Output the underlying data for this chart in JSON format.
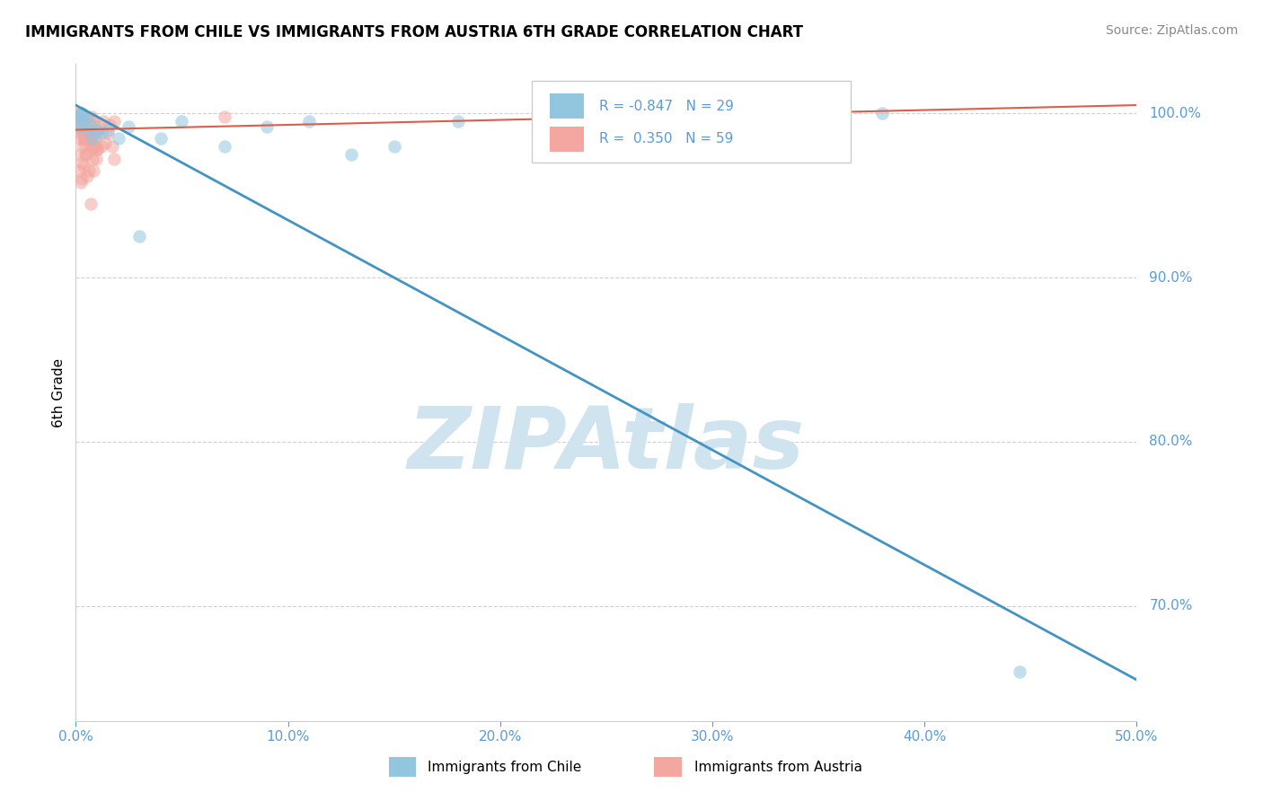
{
  "title": "IMMIGRANTS FROM CHILE VS IMMIGRANTS FROM AUSTRIA 6TH GRADE CORRELATION CHART",
  "source": "Source: ZipAtlas.com",
  "ylabel": "6th Grade",
  "xlim": [
    0.0,
    50.0
  ],
  "ylim": [
    63.0,
    103.0
  ],
  "yticks_right": [
    70.0,
    80.0,
    90.0,
    100.0
  ],
  "xticks": [
    0.0,
    10.0,
    20.0,
    30.0,
    40.0,
    50.0
  ],
  "legend_label1": "Immigrants from Chile",
  "legend_label2": "Immigrants from Austria",
  "R_chile": -0.847,
  "N_chile": 29,
  "R_austria": 0.35,
  "N_austria": 59,
  "color_chile": "#92c5de",
  "color_austria": "#f4a6a0",
  "trend_color_chile": "#4393c3",
  "trend_color_austria": "#d6604d",
  "watermark": "ZIPAtlas",
  "watermark_color": "#d0e4f0",
  "tick_color": "#5b9bd5",
  "grid_color": "#d0d0d0",
  "chile_x": [
    0.1,
    0.2,
    0.3,
    0.15,
    0.25,
    0.35,
    0.5,
    0.6,
    0.7,
    0.8,
    1.0,
    1.2,
    1.5,
    2.0,
    2.5,
    3.0,
    4.0,
    5.0,
    7.0,
    9.0,
    11.0,
    13.0,
    15.0,
    18.0,
    22.0,
    28.0,
    33.0,
    38.0,
    44.5
  ],
  "chile_y": [
    99.5,
    99.8,
    100.0,
    99.2,
    100.0,
    99.5,
    99.8,
    99.0,
    99.3,
    98.5,
    99.0,
    98.8,
    99.0,
    98.5,
    99.2,
    92.5,
    98.5,
    99.5,
    98.0,
    99.2,
    99.5,
    97.5,
    98.0,
    99.5,
    97.5,
    100.0,
    100.0,
    100.0,
    66.0
  ],
  "austria_x": [
    0.05,
    0.1,
    0.12,
    0.15,
    0.18,
    0.2,
    0.22,
    0.25,
    0.28,
    0.3,
    0.32,
    0.35,
    0.38,
    0.4,
    0.42,
    0.45,
    0.48,
    0.5,
    0.55,
    0.6,
    0.65,
    0.7,
    0.75,
    0.8,
    0.85,
    0.9,
    0.95,
    1.0,
    1.1,
    1.2,
    1.3,
    1.4,
    1.5,
    1.6,
    1.7,
    1.8,
    0.3,
    0.4,
    0.5,
    0.6,
    0.7,
    0.8,
    0.9,
    1.0,
    0.35,
    0.45,
    0.55,
    0.65,
    0.75,
    0.85,
    0.95,
    0.25,
    0.15,
    1.8,
    0.7,
    1.0,
    0.3,
    0.2,
    7.0
  ],
  "austria_y": [
    99.5,
    100.0,
    99.8,
    99.2,
    98.5,
    99.5,
    100.0,
    98.8,
    99.3,
    99.0,
    98.0,
    98.5,
    99.5,
    99.8,
    98.2,
    99.0,
    98.5,
    99.2,
    98.8,
    99.5,
    99.0,
    98.3,
    99.8,
    98.0,
    99.5,
    98.5,
    99.0,
    98.8,
    99.2,
    98.0,
    99.5,
    98.2,
    98.8,
    99.3,
    98.0,
    99.5,
    97.0,
    98.5,
    97.5,
    96.5,
    98.5,
    97.2,
    98.0,
    97.8,
    96.8,
    97.5,
    96.2,
    98.2,
    97.8,
    96.5,
    97.2,
    95.8,
    96.5,
    97.2,
    94.5,
    97.8,
    96.0,
    97.5,
    99.8
  ],
  "chile_trend_x0": 0.0,
  "chile_trend_y0": 100.5,
  "chile_trend_x1": 50.0,
  "chile_trend_y1": 65.5,
  "austria_trend_x0": 0.0,
  "austria_trend_y0": 99.0,
  "austria_trend_x1": 50.0,
  "austria_trend_y1": 100.5
}
